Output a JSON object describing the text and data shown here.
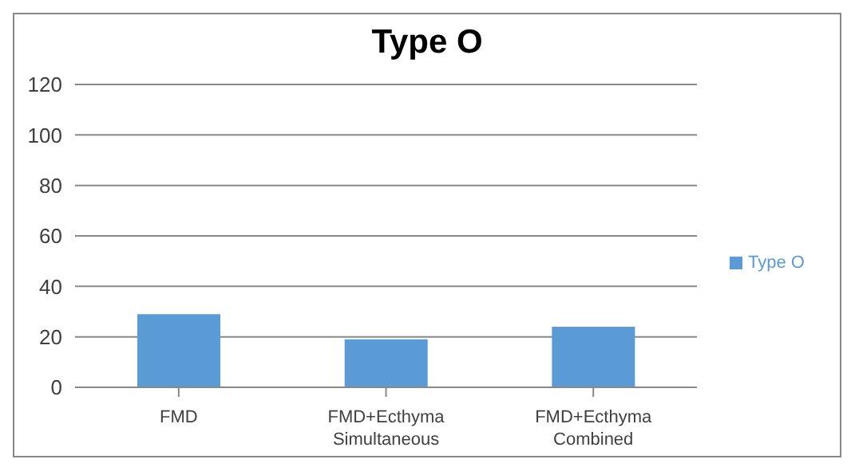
{
  "chart_data": {
    "type": "bar",
    "title": "Type O",
    "categories": [
      "FMD",
      "FMD+Ecthyma Simultaneous",
      "FMD+Ecthyma Combined"
    ],
    "series": [
      {
        "name": "Type O",
        "color": "#5b9bd5",
        "values": [
          29,
          19,
          24
        ]
      }
    ],
    "ylim": [
      0,
      120
    ],
    "yticks": [
      0,
      20,
      40,
      60,
      80,
      100,
      120
    ],
    "grid": "y",
    "legend": "right"
  }
}
